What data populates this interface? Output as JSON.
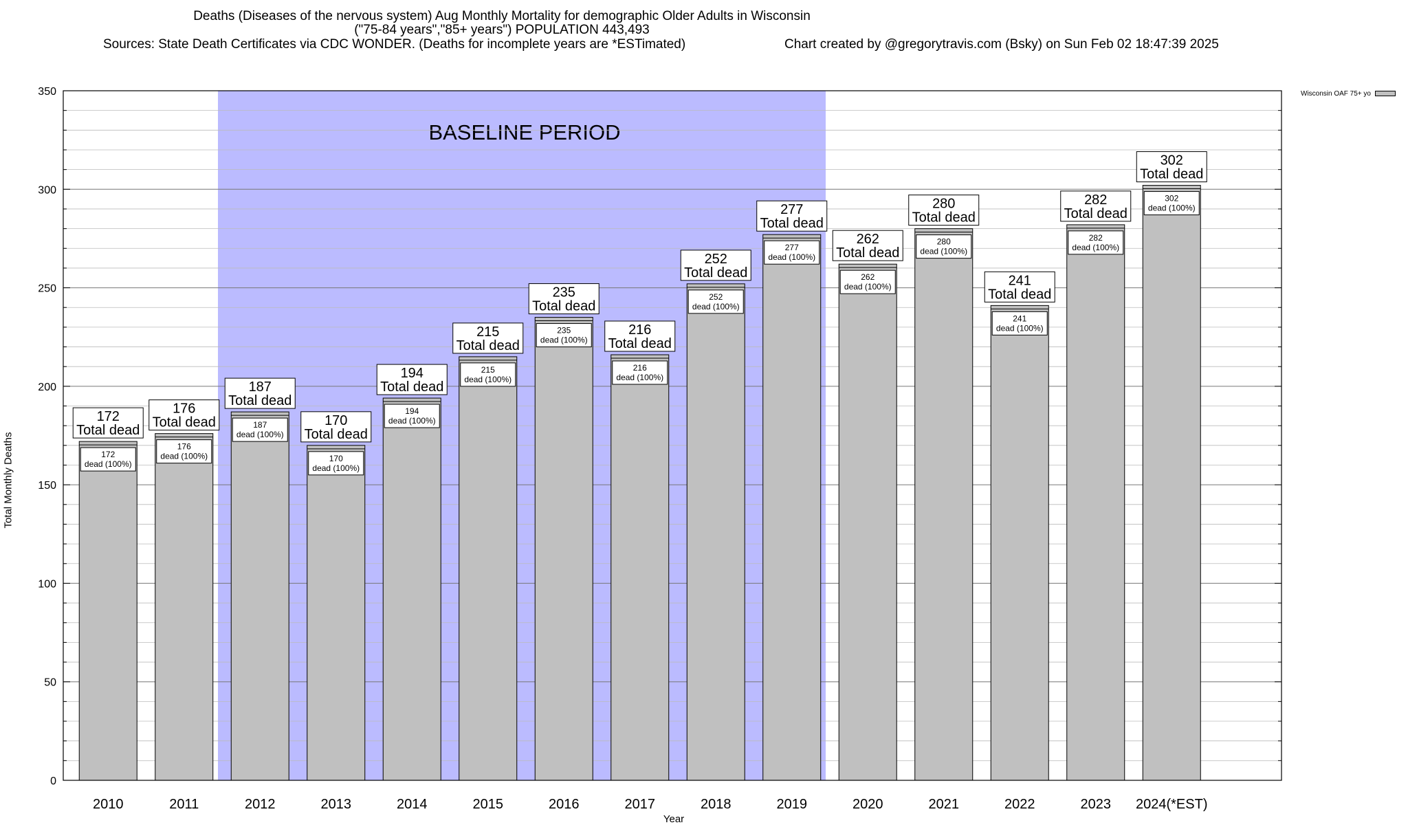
{
  "header": {
    "title_line1": "Deaths (Diseases of the nervous system) Aug Monthly Mortality for demographic Older Adults in Wisconsin",
    "title_line2": "(\"75-84 years\",\"85+ years\") POPULATION 443,493",
    "sources": "Sources: State Death Certificates via CDC WONDER. (Deaths for incomplete years are *ESTimated)",
    "credit": "Chart created by @gregorytravis.com (Bsky) on Sun Feb 02 18:47:39 2025"
  },
  "colors": {
    "bar": "#c0c0c0",
    "baseline_band": "#bbbbff",
    "grid": "#999999"
  },
  "chart_data": {
    "type": "bar",
    "title": "Deaths (Diseases of the nervous system) Aug Monthly Mortality for demographic Older Adults in Wisconsin",
    "xlabel": "Year",
    "ylabel": "Total Monthly Deaths",
    "ylim": [
      0,
      350
    ],
    "yticks": [
      0,
      50,
      100,
      150,
      200,
      250,
      300,
      350
    ],
    "grid": true,
    "legend_placement": "top-right",
    "baseline_label": "BASELINE PERIOD",
    "baseline_range": [
      "2012",
      "2019"
    ],
    "total_label": "Total dead",
    "inner_label": "dead (100%)",
    "categories": [
      "2010",
      "2011",
      "2012",
      "2013",
      "2014",
      "2015",
      "2016",
      "2017",
      "2018",
      "2019",
      "2020",
      "2021",
      "2022",
      "2023",
      "2024(*EST)"
    ],
    "series": [
      {
        "name": "Wisconsin OAF 75+ yo",
        "values": [
          172,
          176,
          187,
          170,
          194,
          215,
          235,
          216,
          252,
          277,
          262,
          280,
          241,
          282,
          302
        ]
      }
    ]
  }
}
